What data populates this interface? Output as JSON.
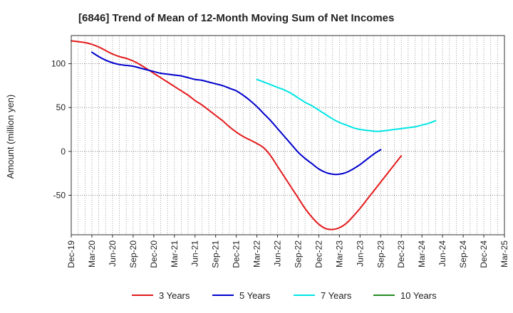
{
  "chart_data": {
    "type": "line",
    "title": "[6846]  Trend of Mean of 12-Month Moving Sum of Net Incomes",
    "xlabel": "",
    "ylabel": "Amount (million yen)",
    "ylim": [
      -95,
      132
    ],
    "yticks": [
      100,
      50,
      0,
      -50
    ],
    "ytick_labels": [
      "100",
      "50",
      "0",
      "-50"
    ],
    "x_tick_labels": [
      "Dec-19",
      "Mar-20",
      "Jun-20",
      "Sep-20",
      "Dec-20",
      "Mar-21",
      "Jun-21",
      "Sep-21",
      "Dec-21",
      "Mar-22",
      "Jun-22",
      "Sep-22",
      "Dec-22",
      "Mar-23",
      "Jun-23",
      "Sep-23",
      "Dec-23",
      "Mar-24",
      "Jun-24",
      "Sep-24",
      "Dec-24",
      "Mar-25"
    ],
    "grid": true,
    "legend_position": "bottom",
    "series": [
      {
        "name": "3 Years",
        "color": "#e41a1c",
        "start_index": 0,
        "values": [
          126,
          125,
          124,
          122,
          119,
          115,
          111,
          108,
          106,
          103,
          99,
          94,
          89,
          84,
          79,
          74,
          69,
          64,
          58,
          53,
          47,
          41,
          35,
          28,
          22,
          17,
          13,
          9,
          4,
          -5,
          -17,
          -29,
          -41,
          -53,
          -65,
          -75,
          -83,
          -88,
          -89,
          -87,
          -82,
          -74,
          -65,
          -55,
          -45,
          -35,
          -25,
          -15,
          -5
        ]
      },
      {
        "name": "5 Years",
        "color": "#0000cd",
        "start_index": 3,
        "values": [
          113,
          108,
          104,
          101,
          99,
          98,
          97,
          95,
          93,
          91,
          89,
          88,
          87,
          86,
          84,
          82,
          81,
          79,
          77,
          75,
          72,
          69,
          64,
          58,
          51,
          43,
          35,
          26,
          17,
          8,
          -1,
          -8,
          -14,
          -20,
          -24,
          -26,
          -26,
          -24,
          -20,
          -15,
          -9,
          -3,
          2
        ]
      },
      {
        "name": "7 Years",
        "color": "#00e5e5",
        "start_index": 27,
        "values": [
          82,
          79,
          76,
          73,
          70,
          66,
          61,
          56,
          52,
          47,
          42,
          37,
          33,
          30,
          27,
          25,
          24,
          23,
          23,
          24,
          25,
          26,
          27,
          28,
          30,
          32,
          35
        ]
      },
      {
        "name": "10 Years",
        "color": "#228b22",
        "start_index": 0,
        "values": []
      }
    ]
  }
}
